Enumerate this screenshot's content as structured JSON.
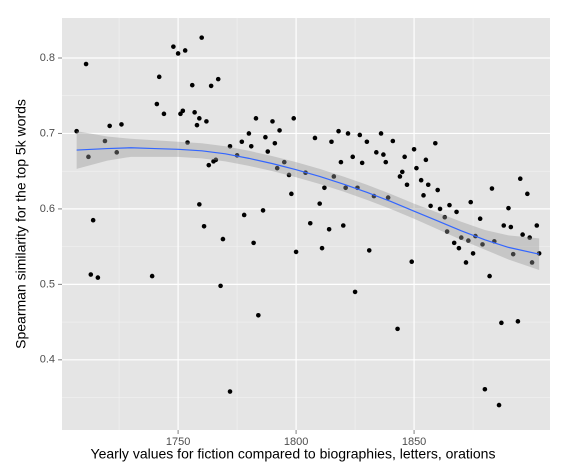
{
  "chart_data": {
    "type": "scatter",
    "x_label": "Yearly values for fiction compared to biographies, letters, orations",
    "y_label": "Spearman similarity for the top 5k words",
    "xlim": [
      1700.8,
      1907.6
    ],
    "ylim": [
      0.307,
      0.853
    ],
    "xticks": [
      1750,
      1800,
      1850
    ],
    "yticks": [
      0.4,
      0.5,
      0.6,
      0.7,
      0.8
    ],
    "grid": true,
    "points": {
      "color": "#000000",
      "x": [
        1707,
        1711,
        1712,
        1713,
        1714,
        1716,
        1719,
        1721,
        1724,
        1726,
        1739,
        1741,
        1742,
        1744,
        1748,
        1750,
        1751,
        1752,
        1753,
        1754,
        1756,
        1757,
        1758,
        1759,
        1759,
        1760,
        1761,
        1762,
        1763,
        1764,
        1765,
        1766,
        1767,
        1768,
        1769,
        1772,
        1772,
        1775,
        1777,
        1778,
        1780,
        1781,
        1782,
        1783,
        1784,
        1786,
        1787,
        1788,
        1790,
        1791,
        1792,
        1793,
        1795,
        1797,
        1798,
        1799,
        1800,
        1804,
        1806,
        1808,
        1810,
        1811,
        1812,
        1814,
        1815,
        1816,
        1818,
        1819,
        1820,
        1821,
        1822,
        1824,
        1825,
        1826,
        1827,
        1828,
        1830,
        1831,
        1833,
        1834,
        1836,
        1837,
        1838,
        1839,
        1841,
        1843,
        1844,
        1845,
        1846,
        1847,
        1849,
        1850,
        1851,
        1853,
        1854,
        1855,
        1856,
        1857,
        1859,
        1860,
        1861,
        1863,
        1864,
        1865,
        1867,
        1868,
        1869,
        1870,
        1872,
        1873,
        1874,
        1875,
        1876,
        1878,
        1879,
        1880,
        1882,
        1883,
        1884,
        1886,
        1887,
        1888,
        1890,
        1891,
        1892,
        1894,
        1895,
        1896,
        1898,
        1899,
        1900,
        1902,
        1903
      ],
      "y": [
        0.703,
        0.792,
        0.669,
        0.513,
        0.585,
        0.509,
        0.69,
        0.71,
        0.675,
        0.712,
        0.511,
        0.739,
        0.775,
        0.726,
        0.815,
        0.806,
        0.726,
        0.73,
        0.81,
        0.688,
        0.764,
        0.728,
        0.711,
        0.606,
        0.72,
        0.827,
        0.577,
        0.716,
        0.658,
        0.763,
        0.663,
        0.665,
        0.772,
        0.498,
        0.56,
        0.683,
        0.358,
        0.671,
        0.689,
        0.592,
        0.7,
        0.683,
        0.555,
        0.72,
        0.459,
        0.598,
        0.695,
        0.676,
        0.716,
        0.687,
        0.654,
        0.704,
        0.662,
        0.645,
        0.62,
        0.72,
        0.543,
        0.648,
        0.581,
        0.694,
        0.607,
        0.548,
        0.628,
        0.573,
        0.689,
        0.643,
        0.703,
        0.662,
        0.578,
        0.628,
        0.7,
        0.669,
        0.49,
        0.628,
        0.698,
        0.661,
        0.689,
        0.545,
        0.617,
        0.675,
        0.7,
        0.672,
        0.662,
        0.615,
        0.69,
        0.441,
        0.643,
        0.649,
        0.669,
        0.632,
        0.53,
        0.679,
        0.654,
        0.638,
        0.618,
        0.665,
        0.632,
        0.604,
        0.687,
        0.625,
        0.6,
        0.589,
        0.57,
        0.605,
        0.555,
        0.596,
        0.548,
        0.562,
        0.529,
        0.558,
        0.609,
        0.541,
        0.564,
        0.587,
        0.553,
        0.361,
        0.511,
        0.627,
        0.557,
        0.34,
        0.449,
        0.578,
        0.601,
        0.576,
        0.54,
        0.451,
        0.64,
        0.566,
        0.62,
        0.562,
        0.529,
        0.578,
        0.541
      ]
    },
    "smooth": {
      "color": "#3366ff",
      "band_color": "#999999",
      "x": [
        1707,
        1720,
        1730,
        1740,
        1750,
        1760,
        1770,
        1780,
        1790,
        1800,
        1810,
        1820,
        1830,
        1840,
        1850,
        1860,
        1870,
        1880,
        1890,
        1903
      ],
      "y": [
        0.678,
        0.68,
        0.681,
        0.68,
        0.679,
        0.677,
        0.673,
        0.667,
        0.66,
        0.652,
        0.643,
        0.633,
        0.622,
        0.61,
        0.597,
        0.584,
        0.571,
        0.559,
        0.549,
        0.54
      ],
      "lower": [
        0.653,
        0.664,
        0.669,
        0.669,
        0.669,
        0.667,
        0.663,
        0.657,
        0.65,
        0.642,
        0.633,
        0.623,
        0.612,
        0.6,
        0.587,
        0.573,
        0.559,
        0.546,
        0.533,
        0.519
      ],
      "upper": [
        0.703,
        0.696,
        0.693,
        0.691,
        0.689,
        0.687,
        0.683,
        0.677,
        0.67,
        0.662,
        0.653,
        0.643,
        0.632,
        0.62,
        0.607,
        0.595,
        0.583,
        0.572,
        0.565,
        0.561
      ]
    }
  }
}
